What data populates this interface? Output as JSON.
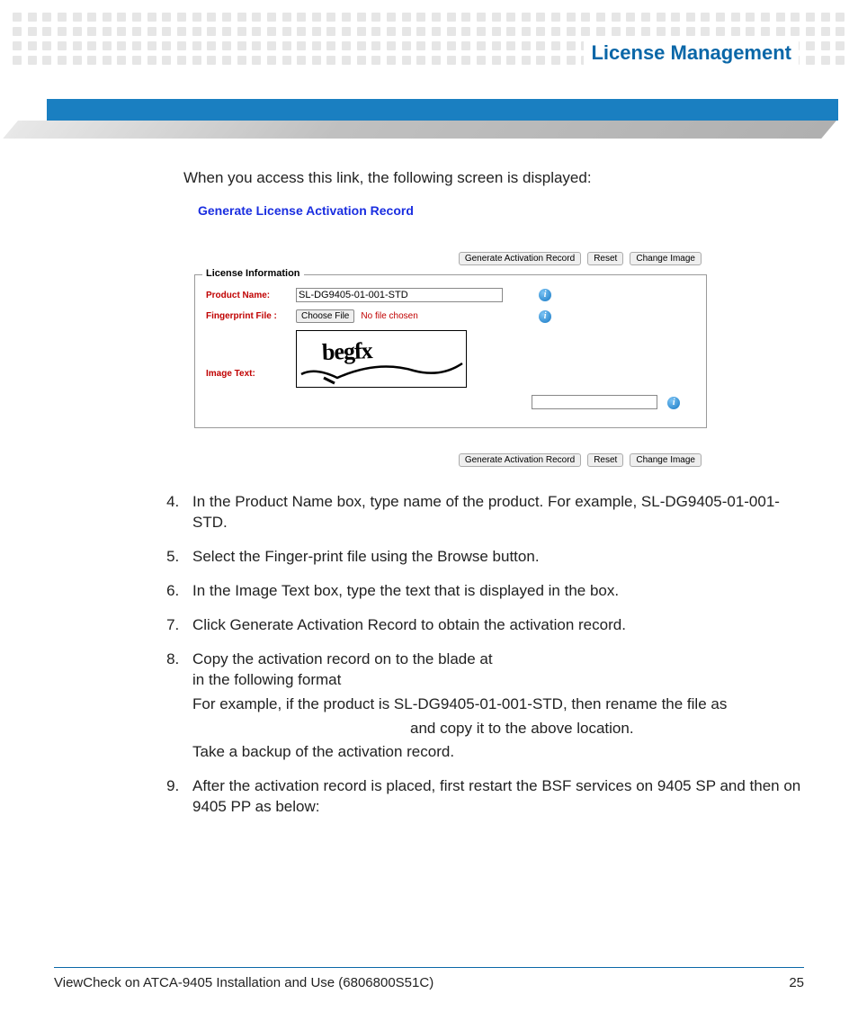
{
  "header": {
    "title": "License Management",
    "title_color": "#0a67a8",
    "bar_color": "#1a7fc1"
  },
  "intro": "When you access this link, the following screen is displayed:",
  "shot": {
    "title": "Generate License Activation Record",
    "title_color": "#1a2ee0",
    "buttons": {
      "generate": "Generate Activation Record",
      "reset": "Reset",
      "change_image": "Change Image"
    },
    "fieldset_legend": "License Information",
    "labels": {
      "product_name": "Product Name:",
      "fingerprint_file": "Fingerprint File :",
      "image_text": "Image Text:"
    },
    "values": {
      "product_name": "SL-DG9405-01-001-STD",
      "choose_file": "Choose File",
      "no_file": "No file chosen",
      "captcha_text": "begfx",
      "captcha_input": ""
    },
    "label_color": "#c00000"
  },
  "steps": {
    "start": 4,
    "s4": "In the Product Name box, type name of the product. For example, SL-DG9405-01-001-STD.",
    "s5": "Select the Finger-print file using the Browse button.",
    "s6": "In the Image Text box, type the text that is displayed in the box.",
    "s7": "Click Generate Activation Record to obtain the activation record.",
    "s8_l1": "Copy the activation record on to the blade at",
    "s8_l2": "in the following format",
    "s8_l3": "For example, if the product is SL-DG9405-01-001-STD, then rename the file as",
    "s8_l4": "and copy it to the above location.",
    "s8_l5": "Take a backup of the activation record.",
    "s9": "After the activation record is placed, first restart the BSF services on 9405 SP and then on 9405 PP as below:"
  },
  "footer": {
    "doc": "ViewCheck on ATCA-9405 Installation and Use (6806800S51C)",
    "page": "25"
  }
}
